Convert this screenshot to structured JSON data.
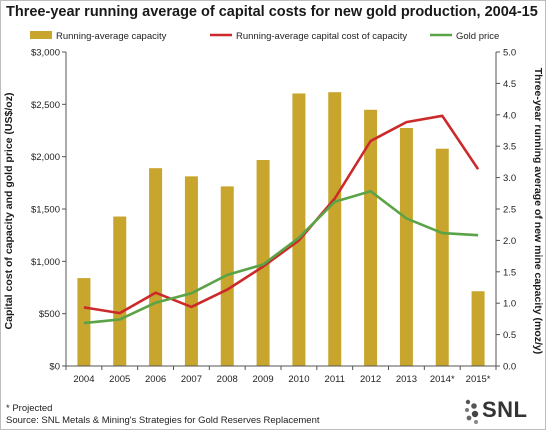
{
  "chart_data": {
    "type": "bar",
    "title": "Three-year running average of capital costs for new gold production, 2004-15",
    "categories": [
      "2004",
      "2005",
      "2006",
      "2007",
      "2008",
      "2009",
      "2010",
      "2011",
      "2012",
      "2013",
      "2014*",
      "2015*"
    ],
    "series": [
      {
        "name": "Running-average capacity",
        "type": "bar",
        "axis": "right",
        "color": "#c8a52c",
        "values": [
          1.4,
          2.38,
          3.15,
          3.02,
          2.86,
          3.28,
          4.34,
          4.36,
          4.08,
          3.79,
          3.46,
          1.19
        ]
      },
      {
        "name": "Running-average capital cost of capacity",
        "type": "line",
        "axis": "left",
        "color": "#cc2a2a",
        "values": [
          560,
          505,
          700,
          565,
          730,
          950,
          1200,
          1600,
          2150,
          2330,
          2390,
          1880
        ]
      },
      {
        "name": "Gold price",
        "type": "line",
        "axis": "left",
        "color": "#5aa346",
        "values": [
          410,
          445,
          605,
          695,
          870,
          970,
          1225,
          1570,
          1670,
          1410,
          1270,
          1250
        ]
      }
    ],
    "ylabel": "Capital cost of capacity and gold price (US$/oz)",
    "ylabel_right": "Three-year running average of new mine capacity (moz/y)",
    "ylim": [
      0,
      3000
    ],
    "ylim_right": [
      0,
      5
    ],
    "yticks": [
      "$0",
      "$500",
      "$1,000",
      "$1,500",
      "$2,000",
      "$2,500",
      "$3,000"
    ],
    "yticks_right": [
      "0.0",
      "0.5",
      "1.0",
      "1.5",
      "2.0",
      "2.5",
      "3.0",
      "3.5",
      "4.0",
      "4.5",
      "5.0"
    ],
    "legend_placement": "top",
    "grid": false
  },
  "notes": {
    "projected": "* Projected",
    "source": "Source: SNL Metals & Mining's Strategies for Gold Reserves Replacement"
  },
  "brand": {
    "text": "SNL",
    "icon": "snl-dots-icon"
  }
}
